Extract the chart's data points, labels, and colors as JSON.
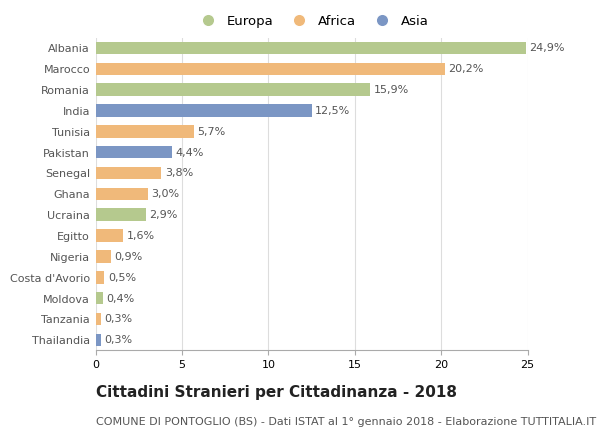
{
  "countries": [
    "Albania",
    "Marocco",
    "Romania",
    "India",
    "Tunisia",
    "Pakistan",
    "Senegal",
    "Ghana",
    "Ucraina",
    "Egitto",
    "Nigeria",
    "Costa d'Avorio",
    "Moldova",
    "Tanzania",
    "Thailandia"
  ],
  "values": [
    24.9,
    20.2,
    15.9,
    12.5,
    5.7,
    4.4,
    3.8,
    3.0,
    2.9,
    1.6,
    0.9,
    0.5,
    0.4,
    0.3,
    0.3
  ],
  "labels": [
    "24,9%",
    "20,2%",
    "15,9%",
    "12,5%",
    "5,7%",
    "4,4%",
    "3,8%",
    "3,0%",
    "2,9%",
    "1,6%",
    "0,9%",
    "0,5%",
    "0,4%",
    "0,3%",
    "0,3%"
  ],
  "continents": [
    "Europa",
    "Africa",
    "Europa",
    "Asia",
    "Africa",
    "Asia",
    "Africa",
    "Africa",
    "Europa",
    "Africa",
    "Africa",
    "Africa",
    "Europa",
    "Africa",
    "Asia"
  ],
  "colors": {
    "Europa": "#b5c98e",
    "Africa": "#f0b97a",
    "Asia": "#7b96c4"
  },
  "title": "Cittadini Stranieri per Cittadinanza - 2018",
  "subtitle": "COMUNE DI PONTOGLIO (BS) - Dati ISTAT al 1° gennaio 2018 - Elaborazione TUTTITALIA.IT",
  "xlim": [
    0,
    25
  ],
  "background_color": "#ffffff",
  "grid_color": "#dddddd",
  "bar_height": 0.6,
  "label_fontsize": 8,
  "tick_fontsize": 8,
  "title_fontsize": 11,
  "subtitle_fontsize": 8
}
